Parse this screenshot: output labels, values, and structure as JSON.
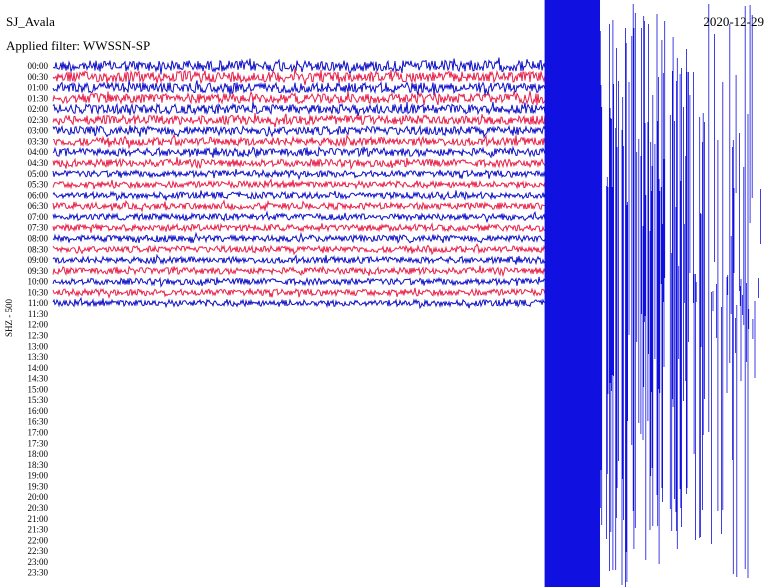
{
  "header": {
    "station": "SJ_Avala",
    "date": "2020-12-29",
    "filter": "Applied filter: WWSSN-SP"
  },
  "channel": "SHZ - 500",
  "time_labels": [
    "00:00",
    "00:30",
    "01:00",
    "01:30",
    "02:00",
    "02:30",
    "03:00",
    "03:30",
    "04:00",
    "04:30",
    "05:00",
    "05:30",
    "06:00",
    "06:30",
    "07:00",
    "07:30",
    "08:00",
    "08:30",
    "09:00",
    "09:30",
    "10:00",
    "10:30",
    "11:00",
    "11:30",
    "12:00",
    "12:30",
    "13:00",
    "13:30",
    "14:00",
    "14:30",
    "15:00",
    "15:30",
    "16:00",
    "16:30",
    "17:00",
    "17:30",
    "18:00",
    "18:30",
    "19:00",
    "19:30",
    "20:00",
    "20:30",
    "21:00",
    "21:30",
    "22:00",
    "22:30",
    "23:00",
    "23:30"
  ]
}
